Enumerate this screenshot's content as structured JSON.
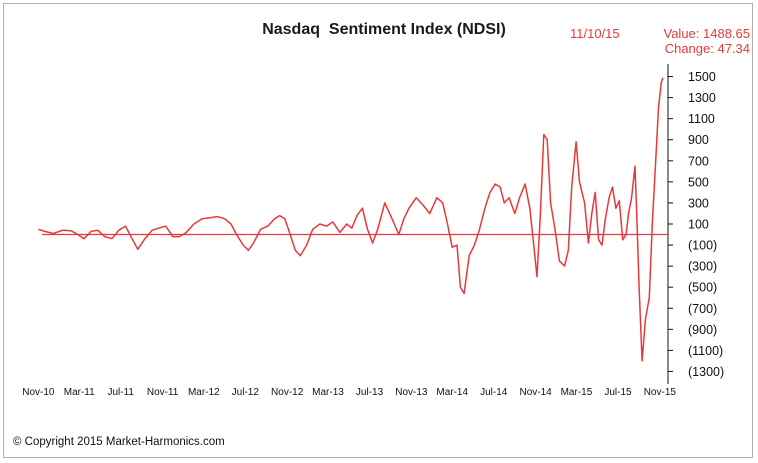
{
  "copyright": "© Copyright 2015 Market-Harmonics.com",
  "header": {
    "date": "11/10/15",
    "value_text": "Value: 1488.65",
    "change_text": "Change: 47.34"
  },
  "colors": {
    "line": "#e8383c",
    "zero_line": "#e8383c",
    "text": "#111111"
  },
  "chart_data": {
    "type": "line",
    "title": "Nasdaq  Sentiment Index (NDSI)",
    "xlabel": "",
    "ylabel": "",
    "ylim": [
      -1400,
      1600
    ],
    "y_ticks": [
      1500,
      1300,
      1100,
      900,
      700,
      500,
      300,
      100,
      -100,
      -300,
      -500,
      -700,
      -900,
      -1100,
      -1300
    ],
    "y_tick_labels": [
      "1500",
      "1300",
      "1100",
      "900",
      "700",
      "500",
      "300",
      "100",
      "(100)",
      "(300)",
      "(500)",
      "(700)",
      "(900)",
      "(1100)",
      "(1300)"
    ],
    "x_tick_labels": [
      "Nov-10",
      "Mar-11",
      "Jul-11",
      "Nov-11",
      "Mar-12",
      "Jul-12",
      "Nov-12",
      "Mar-13",
      "Jul-13",
      "Nov-13",
      "Mar-14",
      "Jul-14",
      "Nov-14",
      "Mar-15",
      "Jul-15",
      "Nov-15"
    ],
    "x_tick_dates": [
      "2010-11-01",
      "2011-03-01",
      "2011-07-01",
      "2011-11-01",
      "2012-03-01",
      "2012-07-01",
      "2012-11-01",
      "2013-03-01",
      "2013-07-01",
      "2013-11-01",
      "2014-03-01",
      "2014-07-01",
      "2014-11-01",
      "2015-03-01",
      "2015-07-01",
      "2015-11-01"
    ],
    "xlim": [
      "2010-10-25",
      "2015-11-25"
    ],
    "reference_line": 0,
    "legend": "none",
    "grid": false,
    "series": [
      {
        "x": [
          "2010-11-01",
          "2010-11-20",
          "2010-12-15",
          "2011-01-10",
          "2011-02-05",
          "2011-02-25",
          "2011-03-15",
          "2011-04-05",
          "2011-04-25",
          "2011-05-15",
          "2011-06-05",
          "2011-06-25",
          "2011-07-15",
          "2011-08-05",
          "2011-08-20",
          "2011-09-10",
          "2011-10-01",
          "2011-10-20",
          "2011-11-10",
          "2011-12-01",
          "2011-12-20",
          "2012-01-10",
          "2012-02-01",
          "2012-02-25",
          "2012-03-20",
          "2012-04-10",
          "2012-05-01",
          "2012-05-20",
          "2012-06-05",
          "2012-06-25",
          "2012-07-10",
          "2012-07-25",
          "2012-08-15",
          "2012-09-05",
          "2012-09-25",
          "2012-10-10",
          "2012-10-25",
          "2012-11-10",
          "2012-11-25",
          "2012-12-10",
          "2012-12-28",
          "2013-01-15",
          "2013-02-05",
          "2013-02-25",
          "2013-03-15",
          "2013-04-05",
          "2013-04-25",
          "2013-05-10",
          "2013-05-25",
          "2013-06-10",
          "2013-06-25",
          "2013-07-10",
          "2013-07-25",
          "2013-08-15",
          "2013-09-05",
          "2013-09-25",
          "2013-10-10",
          "2013-10-25",
          "2013-11-15",
          "2013-12-05",
          "2013-12-25",
          "2014-01-15",
          "2014-02-01",
          "2014-02-15",
          "2014-03-01",
          "2014-03-15",
          "2014-03-25",
          "2014-04-05",
          "2014-04-20",
          "2014-05-05",
          "2014-05-20",
          "2014-06-05",
          "2014-06-20",
          "2014-07-05",
          "2014-07-20",
          "2014-08-01",
          "2014-08-15",
          "2014-09-01",
          "2014-09-15",
          "2014-10-01",
          "2014-10-15",
          "2014-10-25",
          "2014-11-05",
          "2014-11-15",
          "2014-11-25",
          "2014-12-05",
          "2014-12-15",
          "2014-12-28",
          "2015-01-10",
          "2015-01-25",
          "2015-02-05",
          "2015-02-15",
          "2015-02-28",
          "2015-03-10",
          "2015-03-25",
          "2015-04-05",
          "2015-04-15",
          "2015-04-25",
          "2015-05-05",
          "2015-05-15",
          "2015-05-25",
          "2015-06-05",
          "2015-06-15",
          "2015-06-25",
          "2015-07-05",
          "2015-07-15",
          "2015-07-25",
          "2015-08-01",
          "2015-08-10",
          "2015-08-20",
          "2015-08-25",
          "2015-09-01",
          "2015-09-10",
          "2015-09-20",
          "2015-10-01",
          "2015-10-10",
          "2015-10-20",
          "2015-10-28",
          "2015-11-05",
          "2015-11-10"
        ],
        "values": [
          50,
          30,
          10,
          40,
          35,
          0,
          -40,
          30,
          40,
          -20,
          -40,
          40,
          80,
          -50,
          -140,
          -40,
          40,
          60,
          80,
          -20,
          -20,
          20,
          100,
          150,
          160,
          170,
          150,
          100,
          0,
          -100,
          -150,
          -80,
          50,
          80,
          150,
          180,
          150,
          0,
          -150,
          -200,
          -100,
          50,
          100,
          80,
          120,
          20,
          100,
          60,
          180,
          250,
          50,
          -80,
          50,
          300,
          150,
          0,
          150,
          250,
          350,
          280,
          200,
          350,
          300,
          100,
          -120,
          -100,
          -500,
          -560,
          -200,
          -100,
          50,
          250,
          400,
          480,
          450,
          300,
          350,
          200,
          350,
          480,
          250,
          -50,
          -400,
          200,
          950,
          900,
          300,
          50,
          -250,
          -300,
          -150,
          450,
          880,
          500,
          300,
          -80,
          200,
          400,
          -50,
          -100,
          150,
          350,
          450,
          250,
          320,
          -50,
          0,
          200,
          350,
          650,
          200,
          -500,
          -1200,
          -800,
          -600,
          100,
          700,
          1200,
          1440,
          1488.65
        ]
      }
    ]
  }
}
